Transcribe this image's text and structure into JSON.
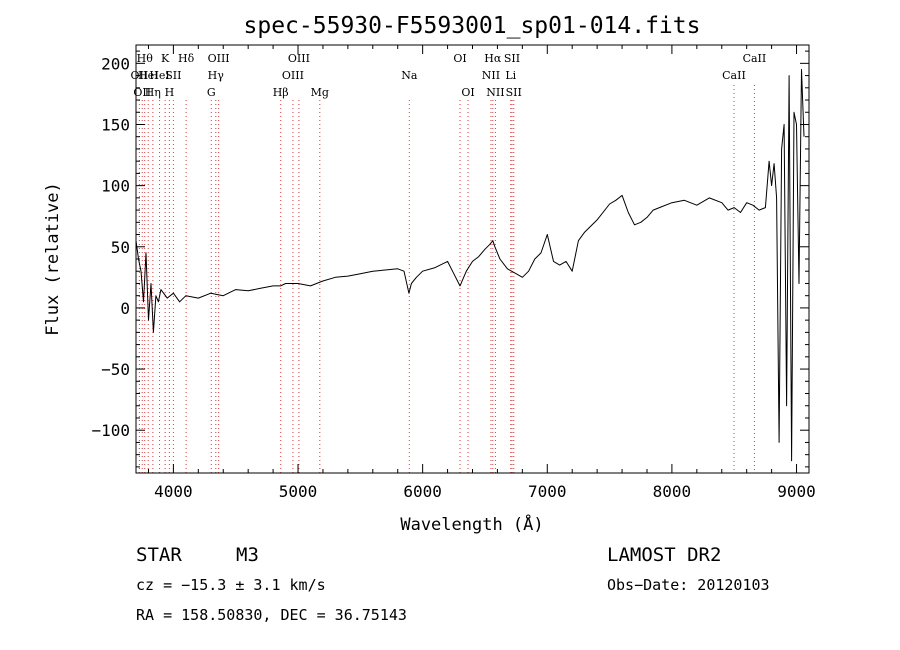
{
  "chart_data": {
    "type": "line",
    "title": "spec-55930-F5593001_sp01-014.fits",
    "xlabel": "Wavelength (Å)",
    "ylabel": "Flux (relative)",
    "xlim": [
      3700,
      9100
    ],
    "ylim": [
      -135,
      215
    ],
    "x_ticks": [
      4000,
      5000,
      6000,
      7000,
      8000,
      9000
    ],
    "y_ticks": [
      -100,
      -50,
      0,
      50,
      100,
      150,
      200
    ],
    "grid": false,
    "series": [
      {
        "x": [
          3700,
          3720,
          3740,
          3760,
          3780,
          3800,
          3820,
          3840,
          3860,
          3880,
          3900,
          3950,
          4000,
          4050,
          4100,
          4200,
          4300,
          4400,
          4500,
          4600,
          4700,
          4800,
          4860,
          4900,
          5000,
          5100,
          5200,
          5300,
          5400,
          5500,
          5600,
          5700,
          5800,
          5850,
          5890,
          5910,
          5950,
          6000,
          6100,
          6200,
          6250,
          6300,
          6350,
          6400,
          6450,
          6500,
          6540,
          6563,
          6580,
          6620,
          6680,
          6750,
          6800,
          6850,
          6900,
          6950,
          7000,
          7050,
          7100,
          7150,
          7200,
          7250,
          7300,
          7400,
          7500,
          7550,
          7600,
          7650,
          7700,
          7750,
          7800,
          7850,
          7900,
          8000,
          8100,
          8200,
          8300,
          8400,
          8450,
          8500,
          8550,
          8600,
          8650,
          8700,
          8750,
          8780,
          8800,
          8820,
          8840,
          8860,
          8880,
          8900,
          8920,
          8940,
          8960,
          8980,
          9000,
          9020,
          9040,
          9060
        ],
        "y": [
          55,
          40,
          30,
          5,
          45,
          -10,
          20,
          -20,
          10,
          5,
          15,
          8,
          12,
          5,
          10,
          8,
          12,
          10,
          15,
          14,
          16,
          18,
          18,
          20,
          20,
          18,
          22,
          25,
          26,
          28,
          30,
          31,
          32,
          30,
          12,
          20,
          25,
          30,
          33,
          38,
          28,
          18,
          30,
          38,
          42,
          48,
          52,
          55,
          50,
          40,
          32,
          28,
          25,
          30,
          40,
          45,
          60,
          38,
          35,
          38,
          30,
          55,
          62,
          72,
          85,
          88,
          92,
          78,
          68,
          70,
          74,
          80,
          82,
          86,
          88,
          84,
          90,
          86,
          80,
          82,
          78,
          86,
          84,
          80,
          82,
          120,
          100,
          118,
          90,
          -110,
          130,
          150,
          -80,
          190,
          -125,
          160,
          150,
          20,
          195,
          140
        ]
      }
    ],
    "lines_top": [
      {
        "wl": 3727,
        "label": "OII",
        "row": 1
      },
      {
        "wl": 3750,
        "label": "OII",
        "row": 2
      },
      {
        "wl": 3770,
        "label": "Hθ",
        "row": 0
      },
      {
        "wl": 3798,
        "label": "HeI",
        "row": 1
      },
      {
        "wl": 3835,
        "label": "Hη",
        "row": 2
      },
      {
        "wl": 3889,
        "label": "HeI",
        "row": 1
      },
      {
        "wl": 3934,
        "label": "K",
        "row": 0
      },
      {
        "wl": 3968,
        "label": "H",
        "row": 2
      },
      {
        "wl": 4000,
        "label": "SII",
        "row": 1
      },
      {
        "wl": 4102,
        "label": "Hδ",
        "row": 0
      },
      {
        "wl": 4304,
        "label": "G",
        "row": 2
      },
      {
        "wl": 4340,
        "label": "Hγ",
        "row": 1
      },
      {
        "wl": 4363,
        "label": "OIII",
        "row": 0
      },
      {
        "wl": 4861,
        "label": "Hβ",
        "row": 2
      },
      {
        "wl": 4959,
        "label": "OIII",
        "row": 1
      },
      {
        "wl": 5007,
        "label": "OIII",
        "row": 0
      },
      {
        "wl": 5175,
        "label": "Mg",
        "row": 2
      },
      {
        "wl": 5893,
        "label": "Na",
        "row": 1
      },
      {
        "wl": 6300,
        "label": "OI",
        "row": 0
      },
      {
        "wl": 6364,
        "label": "OI",
        "row": 2
      },
      {
        "wl": 6548,
        "label": "NII",
        "row": 1
      },
      {
        "wl": 6563,
        "label": "Hα",
        "row": 0
      },
      {
        "wl": 6584,
        "label": "NII",
        "row": 2
      },
      {
        "wl": 6707,
        "label": "Li",
        "row": 1
      },
      {
        "wl": 6717,
        "label": "SII",
        "row": 0
      },
      {
        "wl": 6731,
        "label": "SII",
        "row": 2
      }
    ],
    "lines_cat": [
      {
        "wl": 8498,
        "label": "CaII",
        "row": 1
      },
      {
        "wl": 8662,
        "label": "CaII",
        "row": 0
      }
    ]
  },
  "info": {
    "class": "STAR",
    "subclass": "M3",
    "survey": "LAMOST DR2",
    "cz": "cz = −15.3 ± 3.1 km/s",
    "obsdate": "Obs−Date: 20120103",
    "radec": "RA = 158.50830, DEC =  36.75143"
  }
}
